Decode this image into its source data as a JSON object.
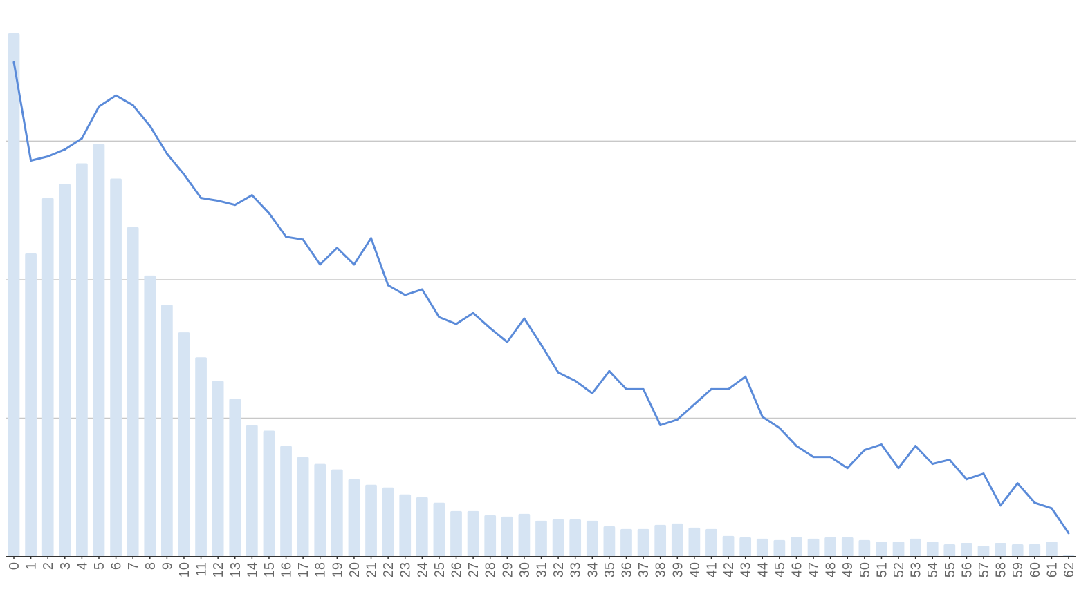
{
  "chart_data": {
    "type": "bar+line",
    "title": "",
    "xlabel": "",
    "ylabel": "",
    "categories": [
      "0",
      "1",
      "2",
      "3",
      "4",
      "5",
      "6",
      "7",
      "8",
      "9",
      "10",
      "11",
      "12",
      "13",
      "14",
      "15",
      "16",
      "17",
      "18",
      "19",
      "20",
      "21",
      "22",
      "23",
      "24",
      "25",
      "26",
      "27",
      "28",
      "29",
      "30",
      "31",
      "32",
      "33",
      "34",
      "35",
      "36",
      "37",
      "38",
      "39",
      "40",
      "41",
      "42",
      "43",
      "44",
      "45",
      "46",
      "47",
      "48",
      "49",
      "50",
      "51",
      "52",
      "53",
      "54",
      "55",
      "56",
      "57",
      "58",
      "59",
      "60",
      "61",
      "62"
    ],
    "bar_values": [
      378,
      219,
      259,
      269,
      284,
      298,
      273,
      238,
      203,
      182,
      162,
      144,
      127,
      114,
      95,
      91,
      80,
      72,
      67,
      63,
      56,
      52,
      50,
      45,
      43,
      39,
      33,
      33,
      30,
      29,
      31,
      26,
      27,
      27,
      26,
      22,
      20,
      20,
      23,
      24,
      21,
      20,
      15,
      14,
      13,
      12,
      14,
      13,
      14,
      14,
      12,
      11,
      11,
      13,
      11,
      9,
      10,
      8,
      10,
      9,
      9,
      11,
      1
    ],
    "line_values": [
      357,
      286,
      289,
      294,
      302,
      325,
      333,
      326,
      311,
      291,
      276,
      259,
      257,
      254,
      261,
      248,
      231,
      229,
      211,
      223,
      211,
      230,
      196,
      189,
      193,
      173,
      168,
      176,
      165,
      155,
      172,
      153,
      133,
      127,
      118,
      134,
      121,
      121,
      95,
      99,
      110,
      121,
      121,
      130,
      101,
      93,
      80,
      72,
      72,
      64,
      77,
      81,
      64,
      80,
      67,
      70,
      56,
      60,
      37,
      53,
      39,
      35,
      17
    ],
    "ylim": [
      0,
      378
    ],
    "grid": true,
    "gridline_values": [
      100,
      200,
      300
    ],
    "legend": "none",
    "colors": {
      "bar": "#d6e4f3",
      "line": "#5b8bd9",
      "grid": "#c8c8c8",
      "axis": "#333333"
    }
  }
}
